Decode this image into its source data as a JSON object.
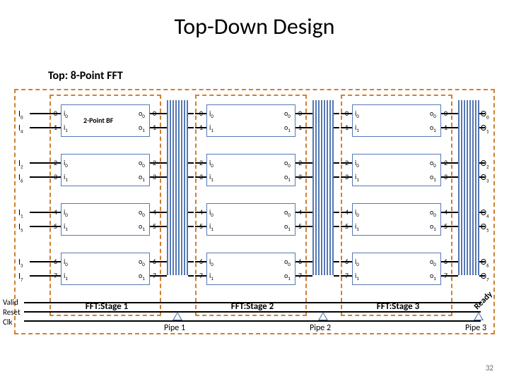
{
  "title": "Top-Down Design",
  "subtitle": "Top: 8-Point FFT",
  "slide_num": "32",
  "colors": {
    "dash": "#d08030",
    "box": "#5578b4",
    "text": "#000000",
    "bg": "#ffffff"
  },
  "signals": {
    "valid": "Valid",
    "reset": "Reset",
    "clk": "Clk",
    "ready": "Ready"
  },
  "stages": [
    {
      "label": "FFT:Stage 1",
      "bf_label": "2-Point BF"
    },
    {
      "label": "FFT:Stage 2",
      "bf_label": ""
    },
    {
      "label": "FFT:Stage 3",
      "bf_label": ""
    }
  ],
  "pipes": [
    {
      "label": "Pipe 1"
    },
    {
      "label": "Pipe 2"
    },
    {
      "label": "Pipe 3"
    }
  ],
  "inputs": [
    [
      "I",
      "0"
    ],
    [
      "I",
      "4"
    ],
    [
      "I",
      "2"
    ],
    [
      "I",
      "6"
    ],
    [
      "I",
      "1"
    ],
    [
      "I",
      "5"
    ],
    [
      "I",
      "3"
    ],
    [
      "I",
      "7"
    ]
  ],
  "outputs": [
    [
      "O",
      "0"
    ],
    [
      "O",
      "1"
    ],
    [
      "O",
      "2"
    ],
    [
      "O",
      "3"
    ],
    [
      "O",
      "4"
    ],
    [
      "O",
      "5"
    ],
    [
      "O",
      "6"
    ],
    [
      "O",
      "7"
    ]
  ],
  "bf_rows": [
    {
      "in_pins": [
        "0",
        "1"
      ],
      "out_pins": [
        "0",
        "1"
      ]
    },
    {
      "in_pins": [
        "2",
        "3"
      ],
      "out_pins": [
        "2",
        "3"
      ]
    },
    {
      "in_pins": [
        "4",
        "5"
      ],
      "out_pins": [
        "4",
        "5"
      ]
    },
    {
      "in_pins": [
        "6",
        "7"
      ],
      "out_pins": [
        "6",
        "7"
      ]
    }
  ],
  "io_labels": {
    "i0": "i",
    "i1": "i",
    "o0": "o",
    "o1": "o",
    "s0": "0",
    "s1": "1"
  }
}
